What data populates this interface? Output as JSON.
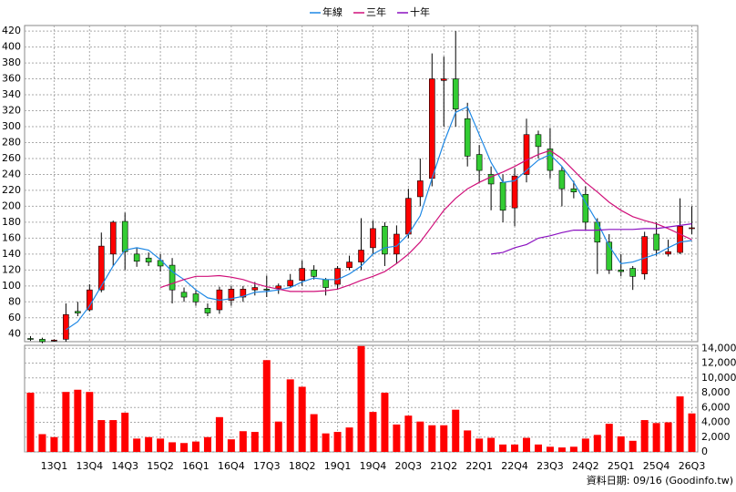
{
  "chart_data": {
    "type": "candlestick",
    "legend": "top",
    "categories": [
      null,
      null,
      "13Q1",
      null,
      null,
      "13Q4",
      null,
      null,
      "14Q3",
      null,
      null,
      "15Q2",
      null,
      null,
      "16Q1",
      null,
      null,
      "16Q4",
      null,
      null,
      "17Q3",
      null,
      null,
      "18Q2",
      null,
      null,
      "19Q1",
      null,
      null,
      "19Q4",
      null,
      null,
      "20Q3",
      null,
      null,
      "21Q2",
      null,
      null,
      "22Q1",
      null,
      null,
      "22Q4",
      null,
      null,
      "23Q3",
      null,
      null,
      "24Q2",
      null,
      null,
      "25Q1",
      null,
      null,
      "25Q4",
      null,
      null,
      "26Q3"
    ],
    "open": [
      34,
      33,
      31,
      33,
      68,
      70,
      95,
      140,
      181,
      140,
      135,
      132,
      126,
      92,
      90,
      72,
      70,
      82,
      86,
      95,
      96,
      97,
      100,
      107,
      120,
      108,
      102,
      123,
      130,
      148,
      175,
      140,
      165,
      212,
      235,
      358,
      360,
      310,
      265,
      240,
      230,
      198,
      240,
      290,
      272,
      245,
      222,
      215,
      180,
      155,
      120,
      122,
      115,
      165,
      140,
      142,
      172
    ],
    "high": [
      37,
      35,
      33,
      78,
      80,
      102,
      167,
      182,
      192,
      148,
      142,
      140,
      135,
      98,
      95,
      78,
      99,
      100,
      100,
      105,
      113,
      103,
      115,
      132,
      126,
      110,
      125,
      138,
      185,
      182,
      180,
      176,
      222,
      260,
      392,
      388,
      420,
      330,
      277,
      250,
      240,
      248,
      310,
      295,
      298,
      250,
      232,
      225,
      185,
      165,
      140,
      125,
      168,
      180,
      158,
      210,
      200
    ],
    "low": [
      31,
      28,
      30,
      30,
      62,
      68,
      92,
      125,
      120,
      124,
      125,
      118,
      78,
      80,
      75,
      62,
      65,
      75,
      80,
      88,
      86,
      90,
      98,
      100,
      108,
      88,
      95,
      120,
      120,
      140,
      125,
      128,
      160,
      200,
      225,
      300,
      300,
      250,
      230,
      195,
      180,
      175,
      230,
      260,
      235,
      200,
      210,
      170,
      115,
      115,
      112,
      95,
      108,
      138,
      137,
      140,
      165
    ],
    "close": [
      33,
      30,
      32,
      64,
      66,
      95,
      150,
      180,
      143,
      131,
      130,
      125,
      95,
      86,
      80,
      66,
      95,
      96,
      96,
      98,
      95,
      100,
      107,
      122,
      112,
      98,
      122,
      130,
      145,
      172,
      140,
      165,
      210,
      232,
      360,
      360,
      322,
      263,
      245,
      228,
      195,
      238,
      290,
      275,
      245,
      222,
      218,
      180,
      155,
      120,
      118,
      112,
      162,
      145,
      143,
      175,
      173
    ],
    "up_color": "#ff0000",
    "down_color": "#33cc33",
    "series": [
      {
        "name": "年線",
        "color": "#1e88e5",
        "values": [
          null,
          null,
          null,
          45,
          55,
          75,
          100,
          125,
          145,
          148,
          145,
          133,
          118,
          108,
          95,
          85,
          82,
          84,
          87,
          92,
          93,
          95,
          98,
          105,
          110,
          108,
          108,
          115,
          125,
          140,
          148,
          150,
          165,
          188,
          235,
          280,
          318,
          325,
          290,
          255,
          230,
          232,
          245,
          258,
          265,
          250,
          230,
          205,
          180,
          150,
          128,
          130,
          135,
          140,
          148,
          155,
          157
        ]
      },
      {
        "name": "三年",
        "color": "#d0107a",
        "values": [
          null,
          null,
          null,
          null,
          null,
          null,
          null,
          null,
          null,
          null,
          null,
          98,
          103,
          108,
          112,
          112,
          113,
          111,
          108,
          103,
          99,
          96,
          93,
          93,
          93,
          94,
          96,
          101,
          107,
          112,
          118,
          128,
          140,
          155,
          175,
          195,
          210,
          222,
          230,
          237,
          243,
          250,
          258,
          265,
          270,
          260,
          245,
          230,
          218,
          205,
          195,
          187,
          182,
          178,
          172,
          165,
          158
        ]
      },
      {
        "name": "十年",
        "color": "#8a10c0",
        "values": [
          null,
          null,
          null,
          null,
          null,
          null,
          null,
          null,
          null,
          null,
          null,
          null,
          null,
          null,
          null,
          null,
          null,
          null,
          null,
          null,
          null,
          null,
          null,
          null,
          null,
          null,
          null,
          null,
          null,
          null,
          null,
          null,
          null,
          null,
          null,
          null,
          null,
          null,
          null,
          140,
          142,
          148,
          152,
          160,
          163,
          167,
          170,
          170,
          170,
          171,
          171,
          171,
          172,
          172,
          174,
          176,
          178
        ]
      }
    ],
    "ylim": [
      30,
      427
    ],
    "yticks": [
      40,
      60,
      80,
      100,
      120,
      140,
      160,
      180,
      200,
      220,
      240,
      260,
      280,
      300,
      320,
      340,
      360,
      380,
      400,
      420
    ],
    "grid": true,
    "volume": {
      "color": "#ff0000",
      "ylim": [
        0,
        14400
      ],
      "values": [
        8000,
        2400,
        2000,
        8100,
        8400,
        8100,
        4300,
        4300,
        5300,
        1800,
        2000,
        1800,
        1300,
        1200,
        1400,
        2000,
        4700,
        1700,
        2800,
        2700,
        12400,
        4100,
        9800,
        8800,
        5100,
        2500,
        2700,
        3300,
        14300,
        5400,
        8000,
        3700,
        4900,
        4100,
        3600,
        3600,
        5700,
        2900,
        1800,
        1900,
        1000,
        1000,
        1900,
        1000,
        700,
        600,
        700,
        1800,
        2300,
        3800,
        2100,
        1500,
        4300,
        3900,
        4000,
        7500,
        5200
      ],
      "yticks": [
        0,
        {
          "value": 2000,
          "label": "2,000"
        },
        {
          "value": 4000,
          "label": "4,000"
        },
        {
          "value": 6000,
          "label": "6,000"
        },
        {
          "value": 8000,
          "label": "8,000"
        },
        {
          "value": 10000,
          "label": "10,000"
        },
        {
          "value": 12000,
          "label": "12,000"
        },
        {
          "value": 14000,
          "label": "14,000"
        }
      ]
    },
    "footer": "資料日期: 09/16 (Goodinfo.tw)"
  }
}
